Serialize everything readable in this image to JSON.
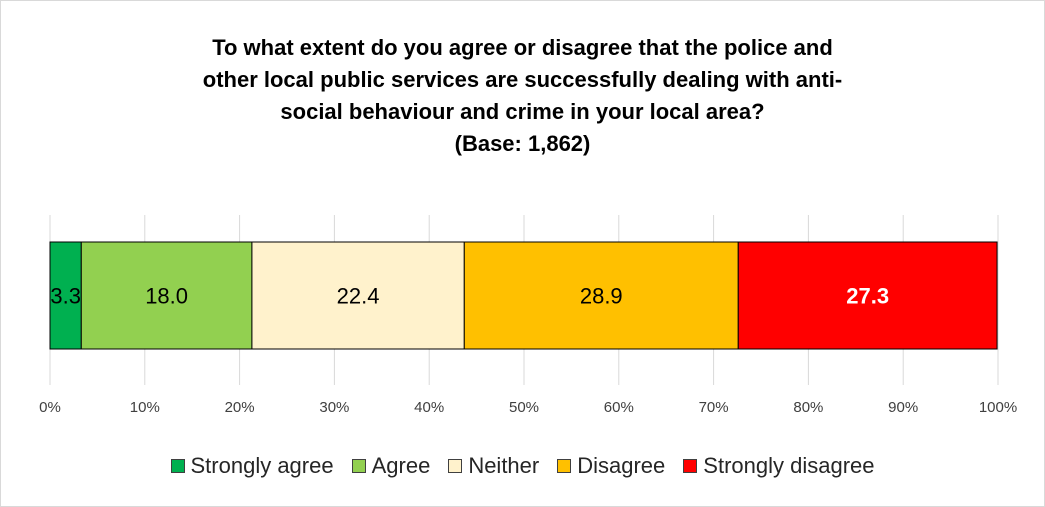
{
  "chart_data": {
    "type": "bar",
    "orientation": "horizontal",
    "stacked": true,
    "title_lines": [
      "To what extent do you agree or disagree that the police and",
      "other local public services are successfully dealing with anti-",
      "social behaviour and crime in your local area?",
      "(Base: 1,862)"
    ],
    "xlim": [
      0,
      100
    ],
    "x_ticks": [
      "0%",
      "10%",
      "20%",
      "30%",
      "40%",
      "50%",
      "60%",
      "70%",
      "80%",
      "90%",
      "100%"
    ],
    "grid": true,
    "legend_position": "bottom",
    "series": [
      {
        "name": "Strongly agree",
        "value": 3.3,
        "label": "3.3",
        "color": "#00B050",
        "label_color": "#000000",
        "label_bold": false
      },
      {
        "name": "Agree",
        "value": 18.0,
        "label": "18.0",
        "color": "#92D050",
        "label_color": "#000000",
        "label_bold": false
      },
      {
        "name": "Neither",
        "value": 22.4,
        "label": "22.4",
        "color": "#FFF2CC",
        "label_color": "#000000",
        "label_bold": false
      },
      {
        "name": "Disagree",
        "value": 28.9,
        "label": "28.9",
        "color": "#FFC000",
        "label_color": "#000000",
        "label_bold": false
      },
      {
        "name": "Strongly disagree",
        "value": 27.3,
        "label": "27.3",
        "color": "#FF0000",
        "label_color": "#FFFFFF",
        "label_bold": true
      }
    ]
  }
}
